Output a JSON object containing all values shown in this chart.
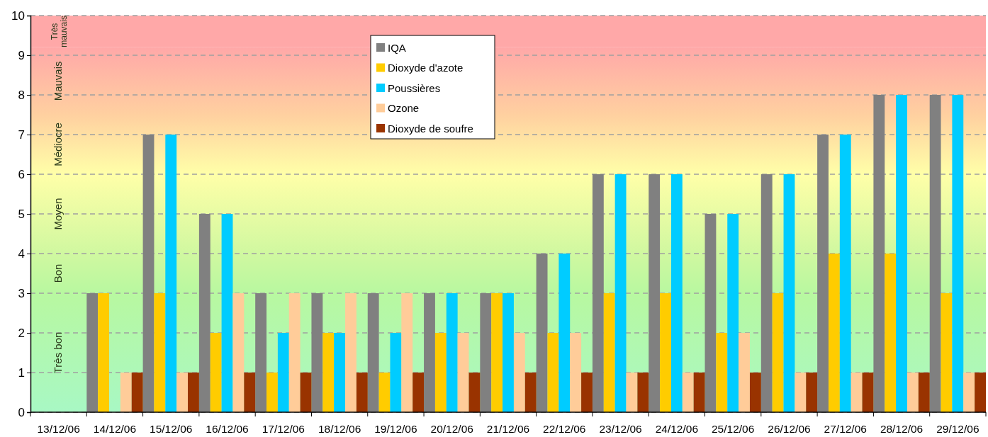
{
  "chart_data": {
    "type": "bar",
    "categories": [
      "13/12/06",
      "14/12/06",
      "15/12/06",
      "16/12/06",
      "17/12/06",
      "18/12/06",
      "19/12/06",
      "20/12/06",
      "21/12/06",
      "22/12/06",
      "23/12/06",
      "24/12/06",
      "25/12/06",
      "26/12/06",
      "27/12/06",
      "28/12/06",
      "29/12/06"
    ],
    "series": [
      {
        "name": "IQA",
        "color": "#808080",
        "values": [
          null,
          3,
          7,
          5,
          3,
          3,
          3,
          3,
          3,
          4,
          6,
          6,
          5,
          6,
          7,
          8,
          8
        ]
      },
      {
        "name": "Dioxyde d'azote",
        "color": "#ffcc00",
        "values": [
          null,
          3,
          3,
          2,
          1,
          2,
          1,
          2,
          3,
          2,
          3,
          3,
          2,
          3,
          4,
          4,
          3
        ]
      },
      {
        "name": "Poussières",
        "color": "#00ccff",
        "values": [
          null,
          null,
          7,
          5,
          2,
          2,
          2,
          3,
          3,
          4,
          6,
          6,
          5,
          6,
          7,
          8,
          8
        ]
      },
      {
        "name": "Ozone",
        "color": "#ffcc99",
        "values": [
          null,
          1,
          1,
          3,
          3,
          3,
          3,
          2,
          2,
          2,
          1,
          1,
          2,
          1,
          1,
          1,
          1
        ]
      },
      {
        "name": "Dioxyde de soufre",
        "color": "#993300",
        "values": [
          null,
          1,
          1,
          1,
          1,
          1,
          1,
          1,
          1,
          1,
          1,
          1,
          1,
          1,
          1,
          1,
          1
        ]
      }
    ],
    "ylim": [
      0,
      10
    ],
    "yticks": [
      0,
      1,
      2,
      3,
      4,
      5,
      6,
      7,
      8,
      9,
      10
    ],
    "grid": "y",
    "legend": "top",
    "bands": [
      {
        "axis": "y",
        "from": 0,
        "to": 3,
        "color": "#a8f8c4",
        "label": "Très bon"
      },
      {
        "axis": "y",
        "from": 3,
        "to": 4,
        "color": "#b8f8a0",
        "label": "Bon"
      },
      {
        "axis": "y",
        "from": 4,
        "to": 6,
        "color": "#d0f8a0",
        "label": "Moyen"
      },
      {
        "axis": "y",
        "from": 6,
        "to": 7.5,
        "color": "#ffffa8",
        "label": "Médiocre"
      },
      {
        "axis": "y",
        "from": 7.5,
        "to": 9.2,
        "color": "#ffd0a0",
        "label": "Mauvais"
      },
      {
        "axis": "y",
        "from": 9.2,
        "to": 10,
        "color": "#ffa8a8",
        "label": "Très mauvais"
      }
    ]
  }
}
